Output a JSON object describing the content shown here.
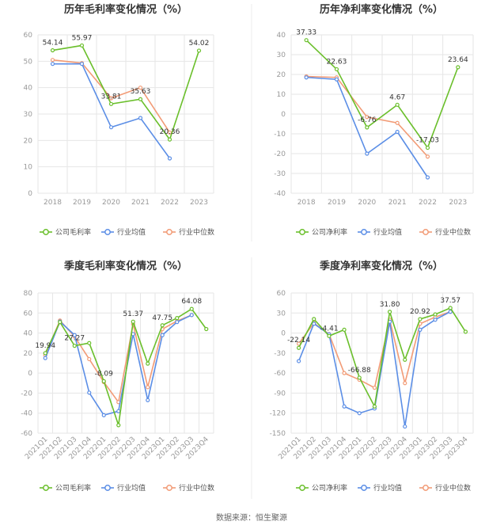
{
  "colors": {
    "company": "#6abf2b",
    "industry_avg": "#5b8ee6",
    "industry_median": "#f29b76"
  },
  "source_label": "数据来源：恒生聚源",
  "chart_data": [
    {
      "type": "line",
      "title": "历年毛利率变化情况（%）",
      "categories": [
        "2018",
        "2019",
        "2020",
        "2021",
        "2022",
        "2023"
      ],
      "ylim": [
        0,
        60
      ],
      "yticks": [
        0,
        10,
        20,
        30,
        40,
        50,
        60
      ],
      "x_tick_rotate": false,
      "legend_position": "bottom",
      "series": [
        {
          "name": "公司毛利率",
          "color_key": "company",
          "values": [
            54.14,
            55.97,
            33.81,
            35.63,
            20.36,
            54.02
          ],
          "labels": [
            "54.14",
            "55.97",
            "33.81",
            "35.63",
            "20.36",
            "54.02"
          ]
        },
        {
          "name": "行业均值",
          "color_key": "industry_avg",
          "values": [
            49.0,
            49.0,
            25.0,
            28.5,
            13.2,
            null
          ]
        },
        {
          "name": "行业中位数",
          "color_key": "industry_median",
          "values": [
            50.5,
            49.3,
            36.0,
            40.0,
            23.0,
            null
          ]
        }
      ]
    },
    {
      "type": "line",
      "title": "历年净利率变化情况（%）",
      "categories": [
        "2018",
        "2019",
        "2020",
        "2021",
        "2022",
        "2023"
      ],
      "ylim": [
        -40,
        40
      ],
      "yticks": [
        -40,
        -30,
        -20,
        -10,
        0,
        10,
        20,
        30,
        40
      ],
      "x_tick_rotate": false,
      "legend_position": "bottom",
      "series": [
        {
          "name": "公司净利率",
          "color_key": "company",
          "values": [
            37.33,
            22.63,
            -6.76,
            4.67,
            -17.03,
            23.64
          ],
          "labels": [
            "37.33",
            "22.63",
            "-6.76",
            "4.67",
            "-17.03",
            "23.64"
          ]
        },
        {
          "name": "行业均值",
          "color_key": "industry_avg",
          "values": [
            18.5,
            17.5,
            -20.0,
            -9.0,
            -32.0,
            null
          ]
        },
        {
          "name": "行业中位数",
          "color_key": "industry_median",
          "values": [
            19.0,
            18.5,
            -1.5,
            -4.5,
            -21.5,
            null
          ]
        }
      ]
    },
    {
      "type": "line",
      "title": "季度毛利率变化情况（%）",
      "categories": [
        "2021Q1",
        "2021Q2",
        "2021Q3",
        "2021Q4",
        "2022Q1",
        "2022Q2",
        "2022Q3",
        "2022Q4",
        "2023Q1",
        "2023Q2",
        "2023Q3",
        "2023Q4"
      ],
      "ylim": [
        -60,
        80
      ],
      "yticks": [
        -60,
        -40,
        -20,
        0,
        20,
        40,
        60,
        80
      ],
      "x_tick_rotate": true,
      "legend_position": "bottom",
      "series": [
        {
          "name": "公司毛利率",
          "color_key": "company",
          "values": [
            19.94,
            51.0,
            27.27,
            30.0,
            -8.09,
            -52.0,
            51.37,
            9.5,
            47.75,
            55.0,
            64.08,
            44.0
          ],
          "labels": [
            "19.94",
            "",
            "27.27",
            "",
            "-8.09",
            "",
            "51.37",
            "",
            "47.75",
            "",
            "64.08",
            ""
          ]
        },
        {
          "name": "行业均值",
          "color_key": "industry_avg",
          "values": [
            15.0,
            51.5,
            38.0,
            -19.5,
            -42.0,
            -38.0,
            39.0,
            -27.0,
            38.0,
            51.0,
            58.0,
            null
          ]
        },
        {
          "name": "行业中位数",
          "color_key": "industry_median",
          "values": [
            18.0,
            52.5,
            36.5,
            14.0,
            -9.0,
            -29.0,
            49.0,
            -14.0,
            44.0,
            52.0,
            58.0,
            null
          ]
        }
      ]
    },
    {
      "type": "line",
      "title": "季度净利率变化情况（%）",
      "categories": [
        "2021Q1",
        "2021Q2",
        "2021Q3",
        "2021Q4",
        "2022Q1",
        "2022Q2",
        "2022Q3",
        "2022Q4",
        "2023Q1",
        "2023Q2",
        "2023Q3",
        "2023Q4"
      ],
      "ylim": [
        -150,
        60
      ],
      "yticks": [
        -150,
        -120,
        -90,
        -60,
        -30,
        0,
        30,
        60
      ],
      "x_tick_rotate": true,
      "legend_position": "bottom",
      "series": [
        {
          "name": "公司净利率",
          "color_key": "company",
          "values": [
            -22.14,
            21.0,
            -4.41,
            5.0,
            -66.88,
            -110.0,
            31.8,
            -40.0,
            20.92,
            28.0,
            37.57,
            2.0
          ],
          "labels": [
            "-22.14",
            "",
            "-4.41",
            "",
            "-66.88",
            "",
            "31.80",
            "",
            "20.92",
            "",
            "37.57",
            ""
          ]
        },
        {
          "name": "行业均值",
          "color_key": "industry_avg",
          "values": [
            -42.0,
            14.0,
            -2.0,
            -110.0,
            -120.0,
            -113.0,
            17.0,
            -140.0,
            5.0,
            20.0,
            32.0,
            null
          ]
        },
        {
          "name": "行业中位数",
          "color_key": "industry_median",
          "values": [
            -16.0,
            15.0,
            -1.5,
            -60.0,
            -70.0,
            -82.0,
            20.0,
            -75.0,
            14.0,
            24.0,
            32.0,
            null
          ]
        }
      ]
    }
  ]
}
